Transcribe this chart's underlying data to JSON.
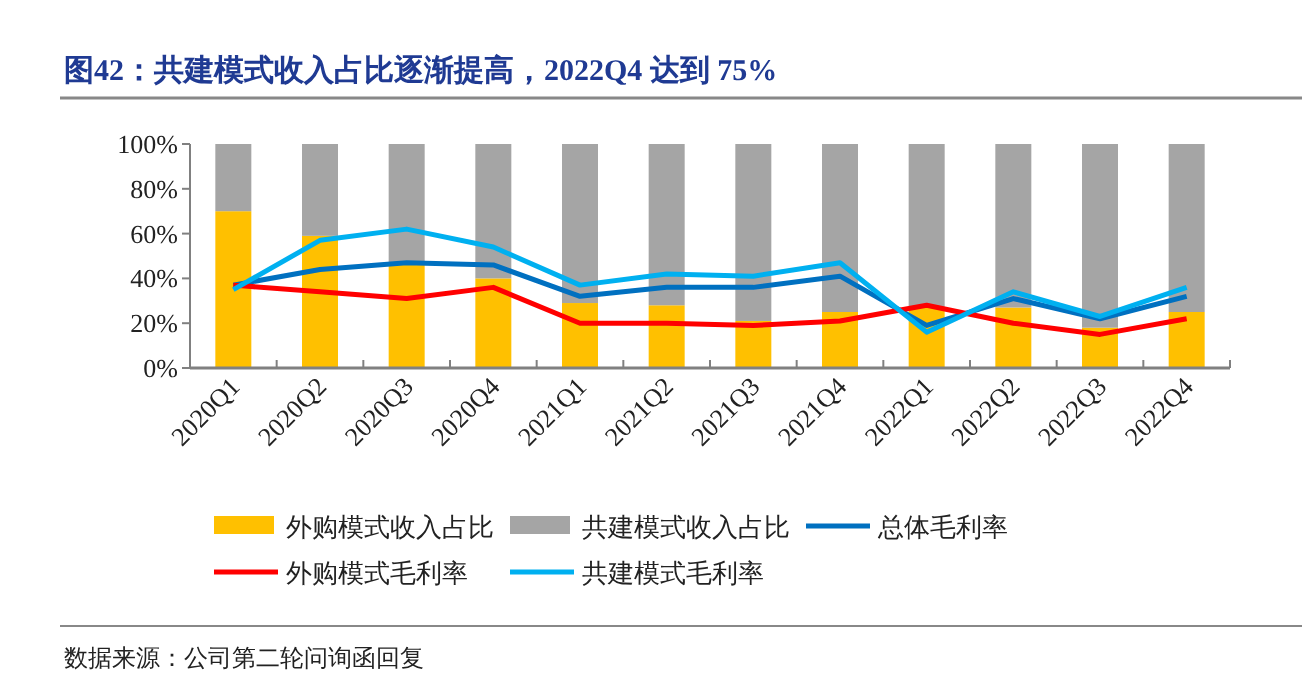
{
  "chart_data": {
    "type": "bar",
    "stacked": true,
    "title": "图42：共建模式收入占比逐渐提高，2022Q4 达到 75%",
    "categories": [
      "2020Q1",
      "2020Q2",
      "2020Q3",
      "2020Q4",
      "2021Q1",
      "2021Q2",
      "2021Q3",
      "2021Q4",
      "2022Q1",
      "2022Q2",
      "2022Q3",
      "2022Q4"
    ],
    "series": [
      {
        "name": "外购模式收入占比",
        "color": "#ffc000",
        "values": [
          70,
          59,
          47,
          40,
          29,
          28,
          21,
          25,
          27,
          27,
          18,
          25
        ]
      },
      {
        "name": "共建模式收入占比",
        "color": "#a5a5a5",
        "values": [
          30,
          41,
          53,
          60,
          71,
          72,
          79,
          75,
          73,
          73,
          82,
          75
        ]
      },
      {
        "name": "总体毛利率",
        "type": "line",
        "color": "#0070c0",
        "values": [
          37,
          44,
          47,
          46,
          32,
          36,
          36,
          41,
          19,
          31,
          22,
          32
        ]
      },
      {
        "name": "外购模式毛利率",
        "type": "line",
        "color": "#ff0000",
        "values": [
          37,
          34,
          31,
          36,
          20,
          20,
          19,
          21,
          28,
          20,
          15,
          22
        ]
      },
      {
        "name": "共建模式毛利率",
        "type": "line",
        "color": "#00b0f0",
        "values": [
          35,
          57,
          62,
          54,
          37,
          42,
          41,
          47,
          16,
          34,
          23,
          36
        ]
      }
    ],
    "ylim": [
      0,
      100
    ],
    "yticks": [
      {
        "value": 0,
        "label": "0%"
      },
      {
        "value": 20,
        "label": "20%"
      },
      {
        "value": 40,
        "label": "40%"
      },
      {
        "value": 60,
        "label": "60%"
      },
      {
        "value": 80,
        "label": "80%"
      },
      {
        "value": 100,
        "label": "100%"
      }
    ],
    "legend": "bottom",
    "annotations": [
      "数据来源：公司第二轮问询函回复"
    ]
  }
}
